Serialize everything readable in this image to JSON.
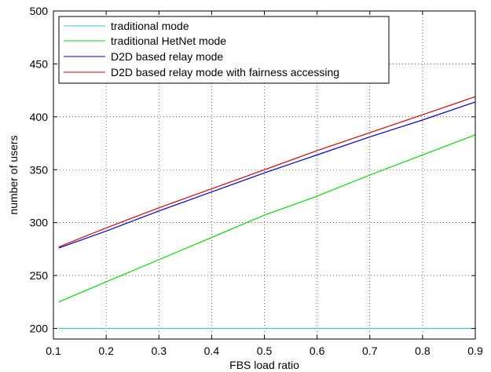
{
  "chart_data": {
    "type": "line",
    "title": "",
    "xlabel": "FBS load ratio",
    "ylabel": "number of users",
    "xlim": [
      0.1,
      0.9
    ],
    "ylim": [
      190,
      500
    ],
    "xticks": [
      0.1,
      0.2,
      0.3,
      0.4,
      0.5,
      0.6,
      0.7,
      0.8,
      0.9
    ],
    "yticks": [
      200,
      250,
      300,
      350,
      400,
      450,
      500
    ],
    "grid": true,
    "legend_position": "top-left",
    "series": [
      {
        "name": "traditional mode",
        "color": "#33cccc",
        "x": [
          0.11,
          0.9
        ],
        "y": [
          200,
          200
        ]
      },
      {
        "name": "traditional HetNet mode",
        "color": "#00dd00",
        "x": [
          0.11,
          0.2,
          0.3,
          0.4,
          0.5,
          0.6,
          0.7,
          0.8,
          0.9
        ],
        "y": [
          225,
          244,
          265,
          286,
          307,
          325,
          345,
          364,
          383
        ]
      },
      {
        "name": "D2D based relay mode",
        "color": "#0000cc",
        "x": [
          0.11,
          0.2,
          0.3,
          0.4,
          0.5,
          0.6,
          0.7,
          0.8,
          0.9
        ],
        "y": [
          276,
          292,
          311,
          329,
          347,
          364,
          381,
          397,
          414
        ]
      },
      {
        "name": "D2D based relay mode with fairness accessing",
        "color": "#dd0000",
        "x": [
          0.11,
          0.2,
          0.3,
          0.4,
          0.5,
          0.6,
          0.7,
          0.8,
          0.9
        ],
        "y": [
          277,
          295,
          314,
          332,
          350,
          368,
          385,
          402,
          419
        ]
      }
    ]
  }
}
